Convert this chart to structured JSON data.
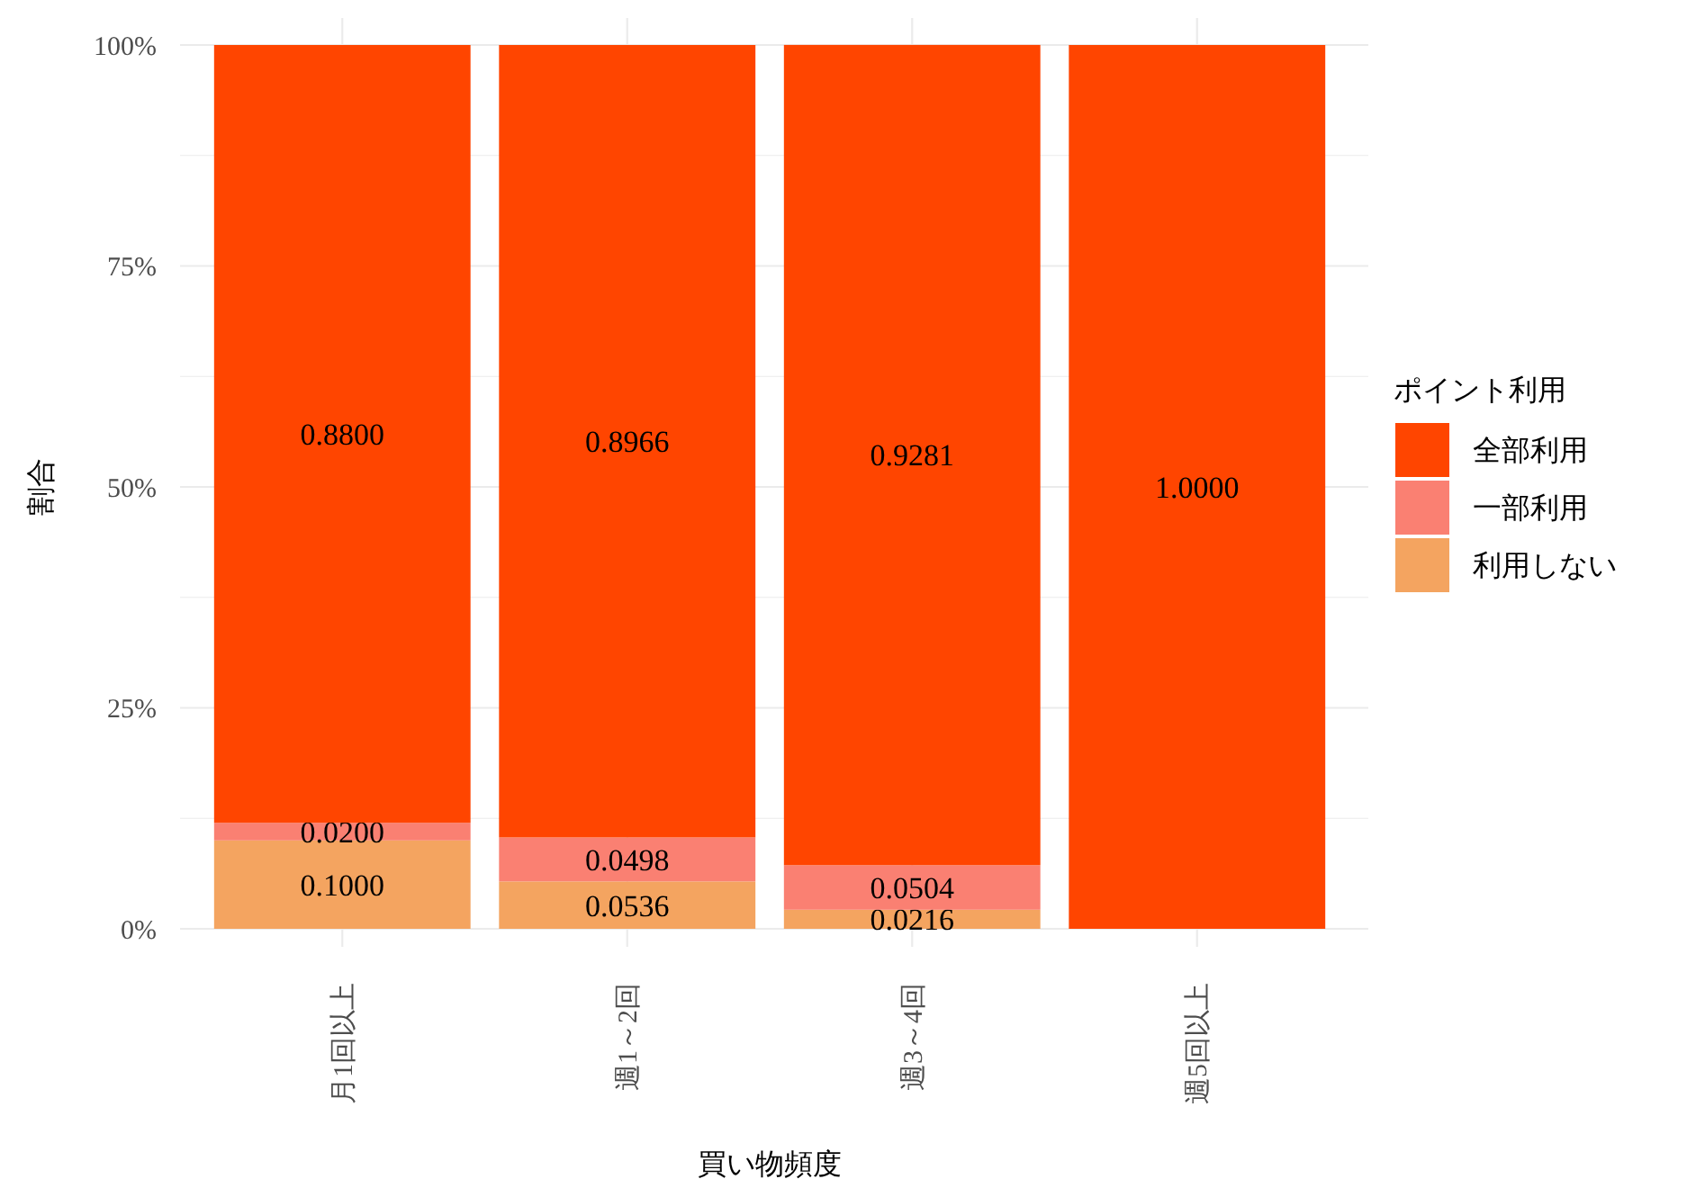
{
  "chart_data": {
    "type": "bar",
    "stacked": true,
    "xlabel": "買い物頻度",
    "ylabel": "割合",
    "legend_title": "ポイント利用",
    "legend": "right",
    "grid": true,
    "categories": [
      "月1回以上",
      "週1～2回",
      "週3～4回",
      "週5回以上"
    ],
    "ylim": [
      0,
      1
    ],
    "yticks": [
      {
        "value": 0,
        "label": "0%"
      },
      {
        "value": 0.125,
        "label": null
      },
      {
        "value": 0.25,
        "label": "25%"
      },
      {
        "value": 0.375,
        "label": null
      },
      {
        "value": 0.5,
        "label": "50%"
      },
      {
        "value": 0.625,
        "label": null
      },
      {
        "value": 0.75,
        "label": "75%"
      },
      {
        "value": 0.875,
        "label": null
      },
      {
        "value": 1,
        "label": "100%"
      }
    ],
    "series": [
      {
        "name": "利用しない",
        "color": "#f4a460",
        "values": [
          0.1,
          0.0536,
          0.0216,
          null
        ],
        "value_labels": [
          "0.1000",
          "0.0536",
          "0.0216",
          null
        ]
      },
      {
        "name": "一部利用",
        "color": "#fa8072",
        "values": [
          0.02,
          0.0498,
          0.0504,
          null
        ],
        "value_labels": [
          "0.0200",
          "0.0498",
          "0.0504",
          null
        ]
      },
      {
        "name": "全部利用",
        "color": "#ff4500",
        "values": [
          0.88,
          0.8966,
          0.9281,
          1
        ],
        "value_labels": [
          "0.8800",
          "0.8966",
          "0.9281",
          "1.0000"
        ]
      }
    ]
  }
}
